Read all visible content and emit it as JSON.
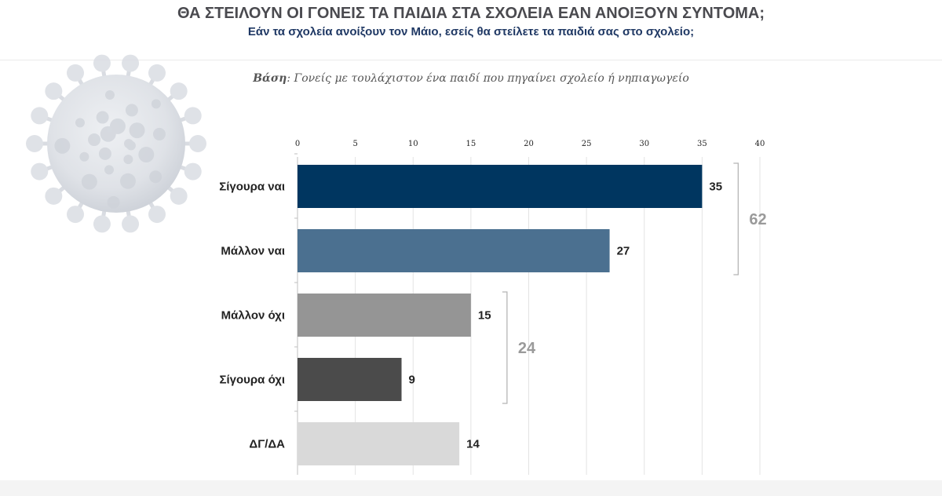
{
  "title": "ΘΑ ΣΤΕΙΛΟΥΝ ΟΙ ΓΟΝΕΙΣ ΤΑ ΠΑΙΔΙΑ ΣΤΑ ΣΧΟΛΕΙΑ ΕΑΝ ΑΝΟΙΞΟΥΝ ΣΥΝΤΟΜΑ;",
  "subtitle": "Εάν τα σχολεία ανοίξουν τον Μάιο, εσείς θα στείλετε τα παιδιά σας στο σχολείο;",
  "basis": {
    "label": "Βάση",
    "text": ": Γονείς με τουλάχιστον ένα παιδί που πηγαίνει σχολείο ή νηπιαγωγείο"
  },
  "colors": {
    "title": "#4a4a4f",
    "subtitle": "#1f3864",
    "group_label": "#9a9a9a"
  },
  "decoration": "coronavirus-illustration",
  "chart_data": {
    "type": "bar",
    "orientation": "horizontal",
    "categories": [
      "Σίγουρα ναι",
      "Μάλλον ναι",
      "Μάλλον όχι",
      "Σίγουρα όχι",
      "ΔΓ/ΔΑ"
    ],
    "values": [
      35,
      27,
      15,
      9,
      14
    ],
    "value_labels": [
      "35",
      "27",
      "15",
      "9",
      "14"
    ],
    "colors": [
      "#003660",
      "#4b7090",
      "#959595",
      "#4b4b4b",
      "#d9d9d9"
    ],
    "xlim": [
      0,
      40
    ],
    "xticks": [
      "0",
      "5",
      "10",
      "15",
      "20",
      "25",
      "30",
      "35",
      "40"
    ],
    "xaxis_position": "top",
    "grid": true,
    "groups": [
      {
        "label": "62",
        "from": 0,
        "to": 1
      },
      {
        "label": "24",
        "from": 2,
        "to": 3
      }
    ]
  }
}
